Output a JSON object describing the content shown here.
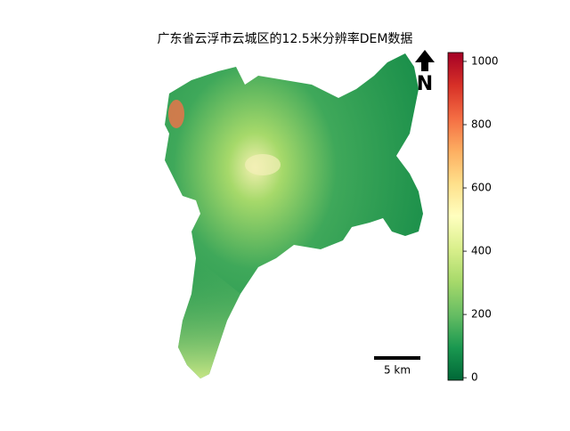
{
  "map": {
    "title": "广东省云浮市云城区的12.5米分辨率DEM数据",
    "north_label": "N",
    "scale_bar_label": "5 km",
    "colorbar": {
      "lim": [
        -8,
        1028
      ],
      "ticks": [
        0,
        200,
        400,
        600,
        800,
        1000
      ],
      "colors": [
        "#006837",
        "#1a9850",
        "#66bd63",
        "#a6d96a",
        "#d9ef8b",
        "#ffffbf",
        "#fee08b",
        "#fdae61",
        "#f46d43",
        "#d73027",
        "#a50026"
      ]
    }
  }
}
